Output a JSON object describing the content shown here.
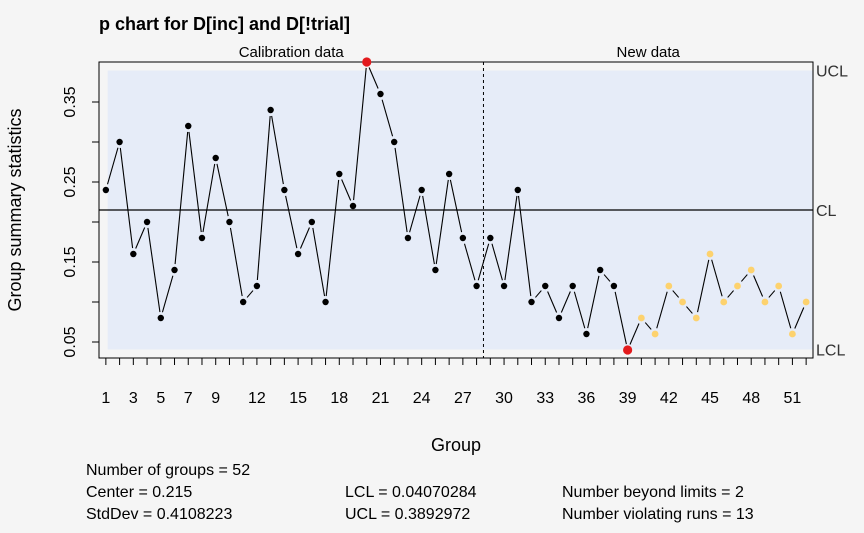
{
  "chart_data": {
    "type": "line",
    "title": "p chart for D[inc] and D[!trial]",
    "xlabel": "Group",
    "ylabel": "Group summary statistics",
    "section_labels": [
      "Calibration data",
      "New data"
    ],
    "calibration_groups": 28,
    "xlim": [
      0.5,
      52.5
    ],
    "ylim": [
      0.03,
      0.4
    ],
    "yticks": [
      0.05,
      0.15,
      0.25,
      0.35
    ],
    "ytick_labels": [
      "0.05",
      "0.15",
      "0.25",
      "0.35"
    ],
    "xticks": [
      1,
      3,
      5,
      7,
      9,
      12,
      15,
      18,
      21,
      24,
      27,
      30,
      33,
      36,
      39,
      42,
      45,
      48,
      51
    ],
    "xtick_labels": [
      "1",
      "3",
      "5",
      "7",
      "9",
      "12",
      "15",
      "18",
      "21",
      "24",
      "27",
      "30",
      "33",
      "36",
      "39",
      "42",
      "45",
      "48",
      "51"
    ],
    "limit_labels": {
      "ucl": "UCL",
      "cl": "CL",
      "lcl": "LCL"
    },
    "center": 0.215,
    "lcl": 0.04070284,
    "ucl": 0.3892972,
    "series": [
      {
        "name": "Calibration data",
        "x": [
          1,
          2,
          3,
          4,
          5,
          6,
          7,
          8,
          9,
          10,
          11,
          12,
          13,
          14,
          15,
          16,
          17,
          18,
          19,
          20,
          21,
          22,
          23,
          24,
          25,
          26,
          27,
          28
        ],
        "values": [
          0.24,
          0.3,
          0.16,
          0.2,
          0.08,
          0.14,
          0.32,
          0.18,
          0.28,
          0.2,
          0.1,
          0.12,
          0.34,
          0.24,
          0.16,
          0.2,
          0.1,
          0.26,
          0.22,
          0.4,
          0.36,
          0.3,
          0.18,
          0.24,
          0.14,
          0.26,
          0.18,
          0.12
        ]
      },
      {
        "name": "New data",
        "x": [
          29,
          30,
          31,
          32,
          33,
          34,
          35,
          36,
          37,
          38,
          39,
          40,
          41,
          42,
          43,
          44,
          45,
          46,
          47,
          48,
          49,
          50,
          51,
          52
        ],
        "values": [
          0.18,
          0.12,
          0.24,
          0.1,
          0.12,
          0.08,
          0.12,
          0.06,
          0.14,
          0.12,
          0.04,
          0.08,
          0.06,
          0.12,
          0.1,
          0.08,
          0.16,
          0.1,
          0.12,
          0.14,
          0.1,
          0.12,
          0.06,
          0.1
        ]
      }
    ],
    "beyond_limits": [
      20,
      39
    ],
    "violating_runs": [
      40,
      41,
      42,
      43,
      44,
      45,
      46,
      47,
      48,
      49,
      50,
      51,
      52
    ],
    "colors": {
      "background": "#f5f5f5",
      "limit_band": "#e6ecf8",
      "point": "#000000",
      "beyond_limits": "#e31a1c",
      "violating_runs": "#fdd26e"
    }
  },
  "stats": {
    "n_groups": "Number of groups = 52",
    "center": "Center = 0.215",
    "stddev": "StdDev = 0.4108223",
    "lcl": "LCL = 0.04070284",
    "ucl": "UCL = 0.3892972",
    "beyond": "Number beyond limits = 2",
    "violating": "Number violating runs = 13"
  }
}
